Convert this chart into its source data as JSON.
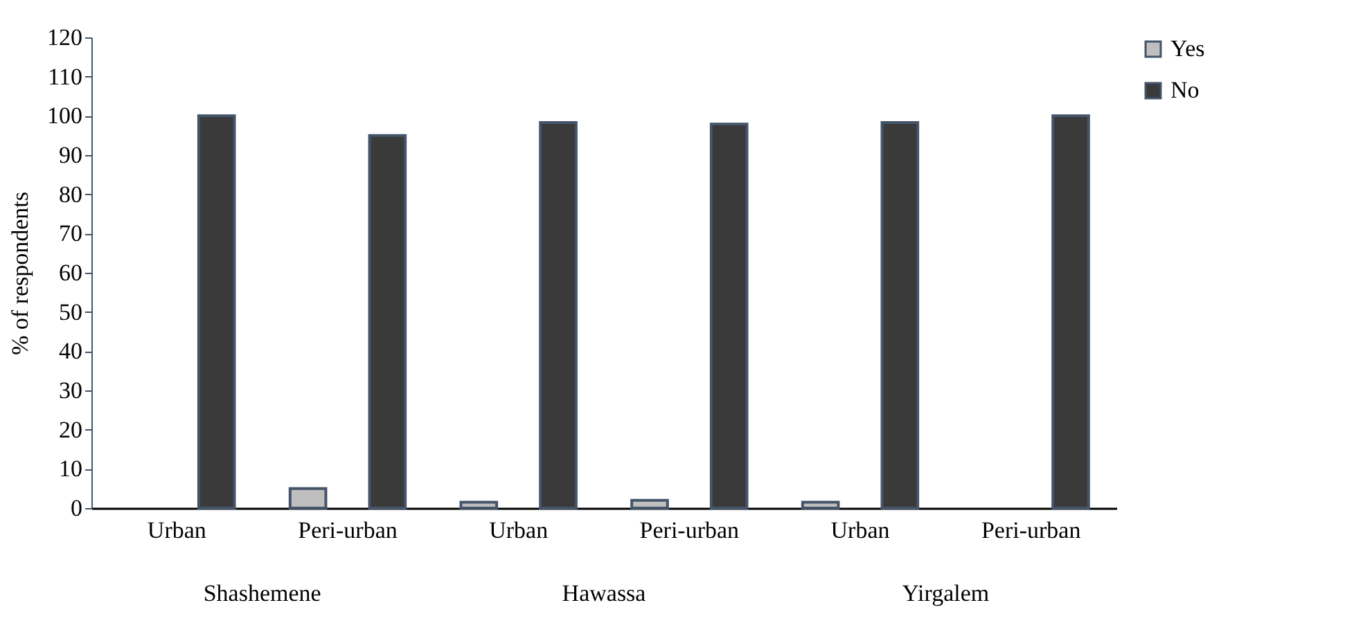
{
  "chart_data": {
    "type": "bar",
    "ylabel": "% of respondents",
    "categories": [
      "Urban",
      "Peri-urban",
      "Urban",
      "Peri-urban",
      "Urban",
      "Peri-urban"
    ],
    "series": [
      {
        "name": "Yes",
        "color": "#bfbfbf",
        "values": [
          0,
          5,
          1.5,
          2,
          1.5,
          0
        ]
      },
      {
        "name": "No",
        "color": "#3a3a3a",
        "values": [
          100,
          95,
          98.3,
          97.9,
          98.3,
          100
        ]
      }
    ],
    "annotations": [
      "Shashemene",
      "Hawassa",
      "Yirgalem"
    ],
    "ylim": [
      0,
      120
    ],
    "yticks": [
      0,
      10,
      20,
      30,
      40,
      50,
      60,
      70,
      80,
      90,
      100,
      110,
      120
    ],
    "grid": false,
    "legend": "top right"
  }
}
